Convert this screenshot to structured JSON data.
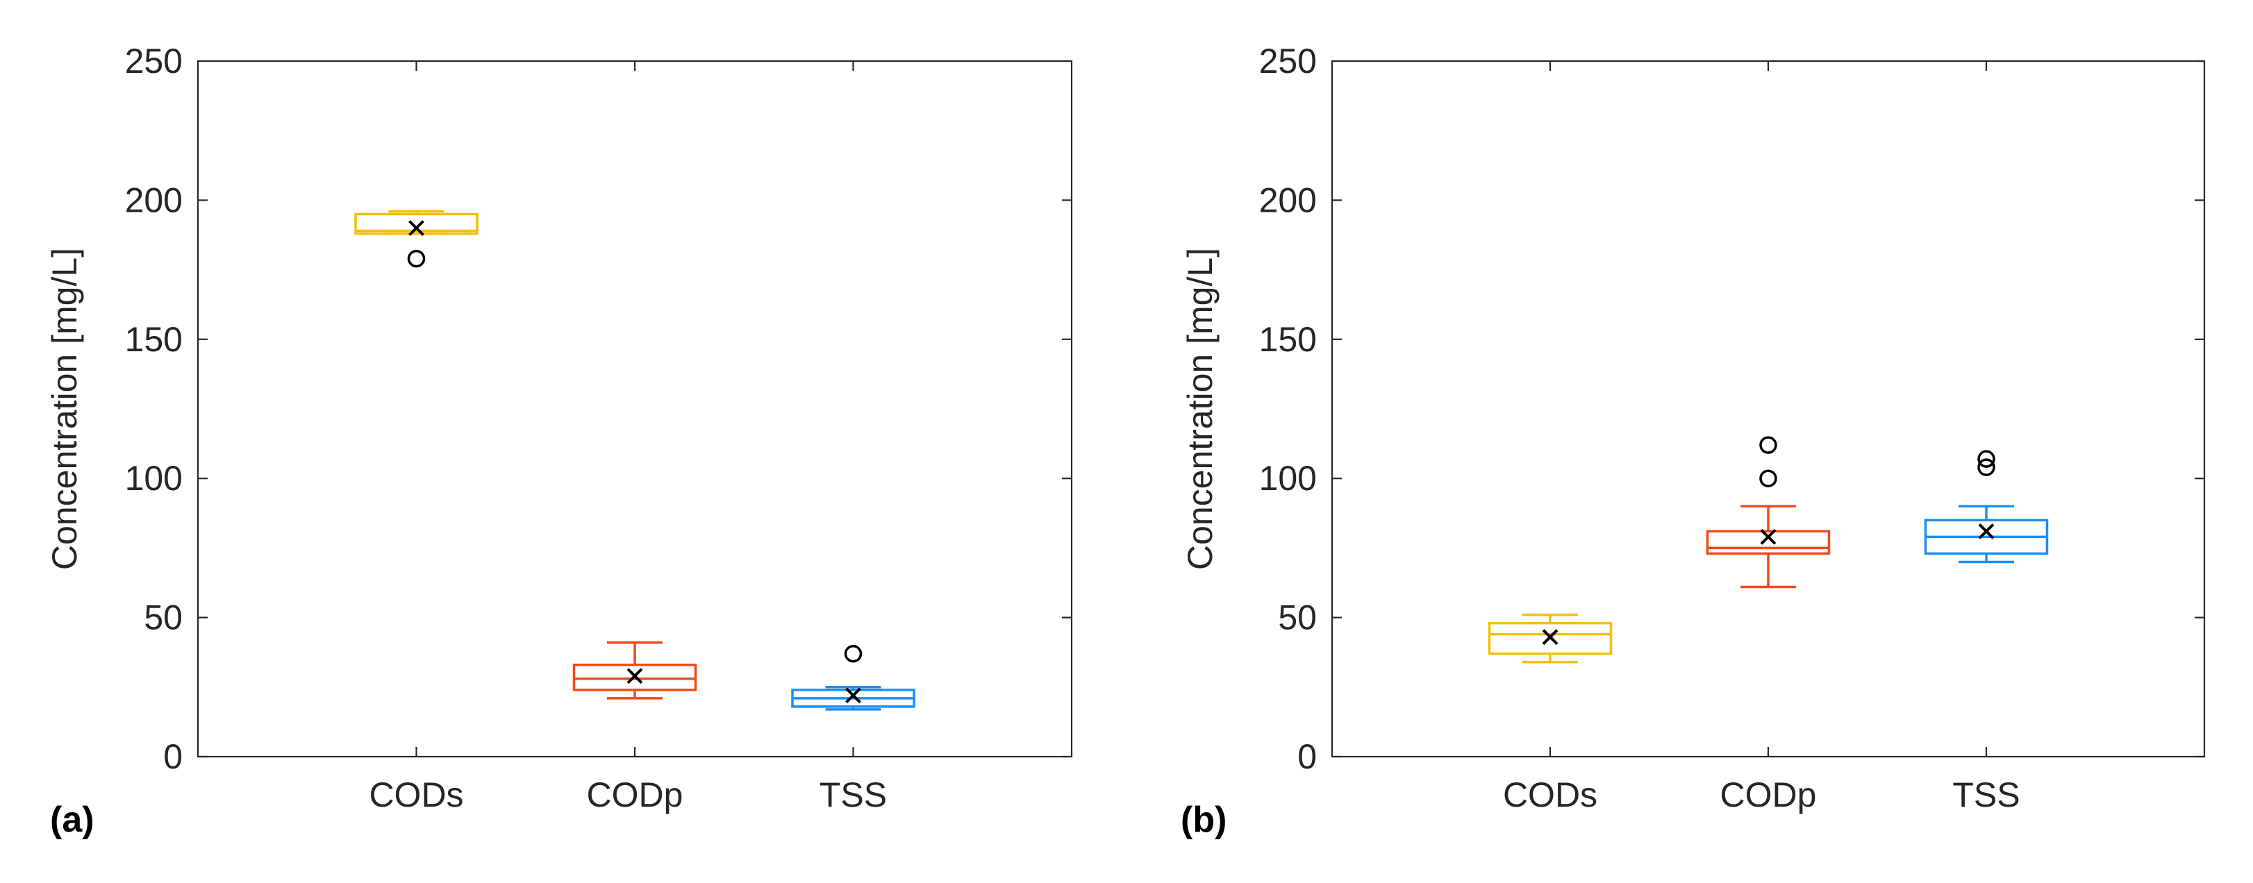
{
  "colors": {
    "CODs": "#f5c000",
    "CODp": "#f04a1a",
    "TSS": "#1e8ef0",
    "axis": "#262626",
    "mean": "#000000"
  },
  "chart_data": [
    {
      "type": "box",
      "panel_label": "(a)",
      "ylabel": "Concentration [mg/L]",
      "ylim": [
        0,
        250
      ],
      "yticks": [
        0,
        50,
        100,
        150,
        200,
        250
      ],
      "categories": [
        "CODs",
        "CODp",
        "TSS"
      ],
      "boxes": [
        {
          "category": "CODs",
          "whisker_low": 188,
          "q1": 188,
          "median": 189,
          "q3": 195,
          "whisker_high": 196,
          "mean": 190,
          "outliers": [
            179
          ]
        },
        {
          "category": "CODp",
          "whisker_low": 21,
          "q1": 24,
          "median": 28,
          "q3": 33,
          "whisker_high": 41,
          "mean": 29,
          "outliers": []
        },
        {
          "category": "TSS",
          "whisker_low": 17,
          "q1": 18,
          "median": 21,
          "q3": 24,
          "whisker_high": 25,
          "mean": 22,
          "outliers": [
            37
          ]
        }
      ]
    },
    {
      "type": "box",
      "panel_label": "(b)",
      "ylabel": "Concentration [mg/L]",
      "ylim": [
        0,
        250
      ],
      "yticks": [
        0,
        50,
        100,
        150,
        200,
        250
      ],
      "categories": [
        "CODs",
        "CODp",
        "TSS"
      ],
      "boxes": [
        {
          "category": "CODs",
          "whisker_low": 34,
          "q1": 37,
          "median": 44,
          "q3": 48,
          "whisker_high": 51,
          "mean": 43,
          "outliers": []
        },
        {
          "category": "CODp",
          "whisker_low": 61,
          "q1": 73,
          "median": 75,
          "q3": 81,
          "whisker_high": 90,
          "mean": 79,
          "outliers": [
            100,
            112
          ]
        },
        {
          "category": "TSS",
          "whisker_low": 70,
          "q1": 73,
          "median": 79,
          "q3": 85,
          "whisker_high": 90,
          "mean": 81,
          "outliers": [
            104,
            107
          ]
        }
      ]
    }
  ]
}
